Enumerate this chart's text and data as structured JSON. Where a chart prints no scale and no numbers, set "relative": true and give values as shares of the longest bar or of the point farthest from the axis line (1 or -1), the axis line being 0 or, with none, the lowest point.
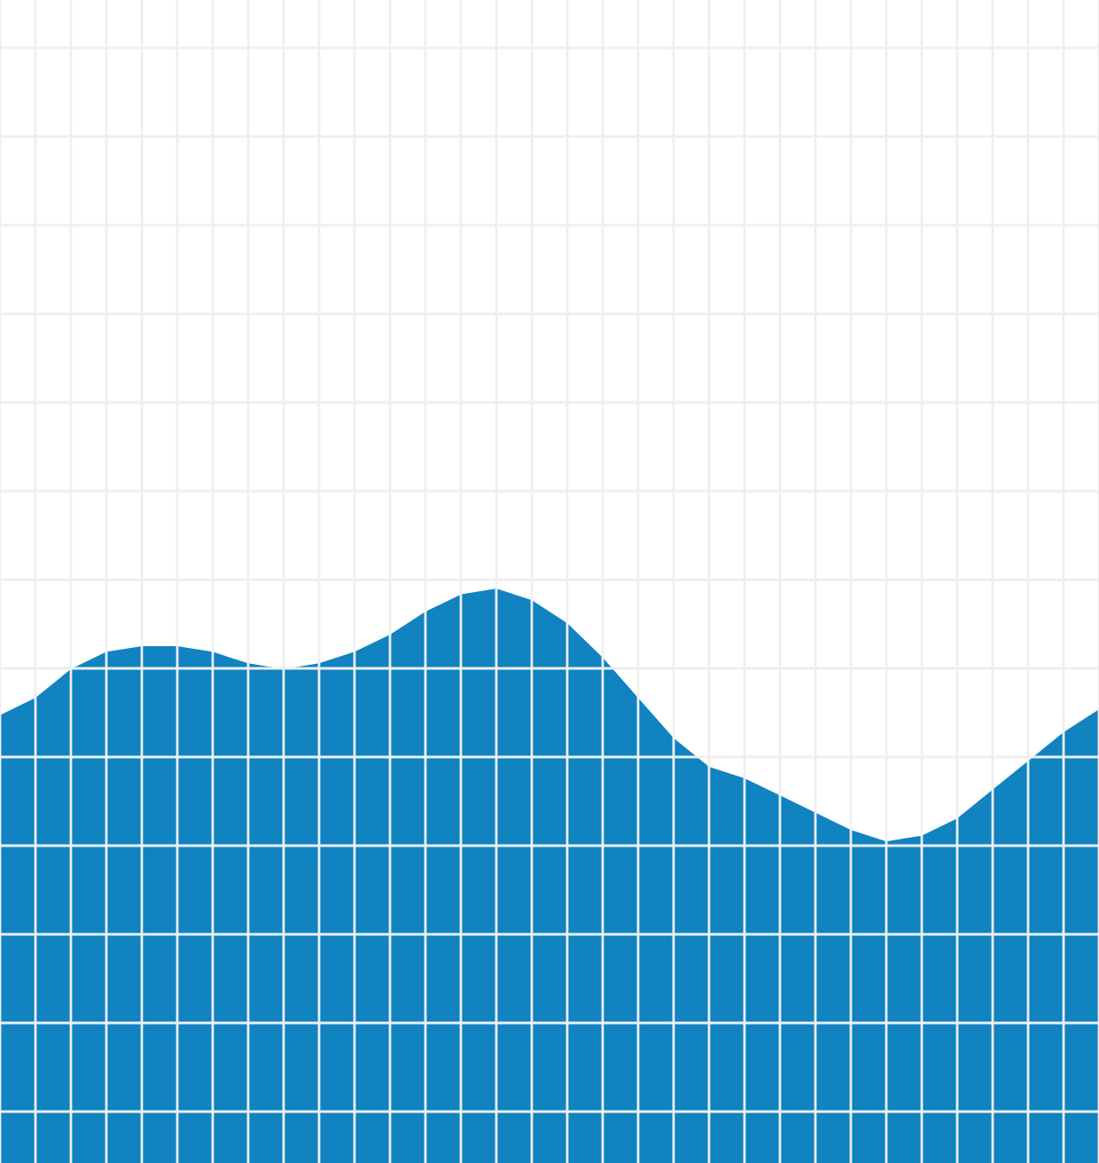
{
  "chart_data": {
    "type": "area",
    "relative": true,
    "grid": true,
    "categories": [
      null,
      null,
      null,
      null,
      null,
      null,
      null,
      null,
      null,
      null,
      null,
      null,
      null,
      null,
      null,
      null,
      null,
      null,
      null,
      null,
      null,
      null,
      null,
      null,
      null,
      null,
      null,
      null,
      null,
      null,
      null,
      null
    ],
    "series": [
      {
        "color": "#1083c0",
        "values": [
          0.78,
          0.81,
          0.86,
          0.89,
          0.9,
          0.9,
          0.89,
          0.87,
          0.86,
          0.87,
          0.89,
          0.92,
          0.96,
          0.99,
          1,
          0.98,
          0.94,
          0.88,
          0.81,
          0.74,
          0.69,
          0.67,
          0.64,
          0.61,
          0.58,
          0.56,
          0.57,
          0.6,
          0.65,
          0.7,
          0.75,
          0.79
        ]
      }
    ]
  }
}
